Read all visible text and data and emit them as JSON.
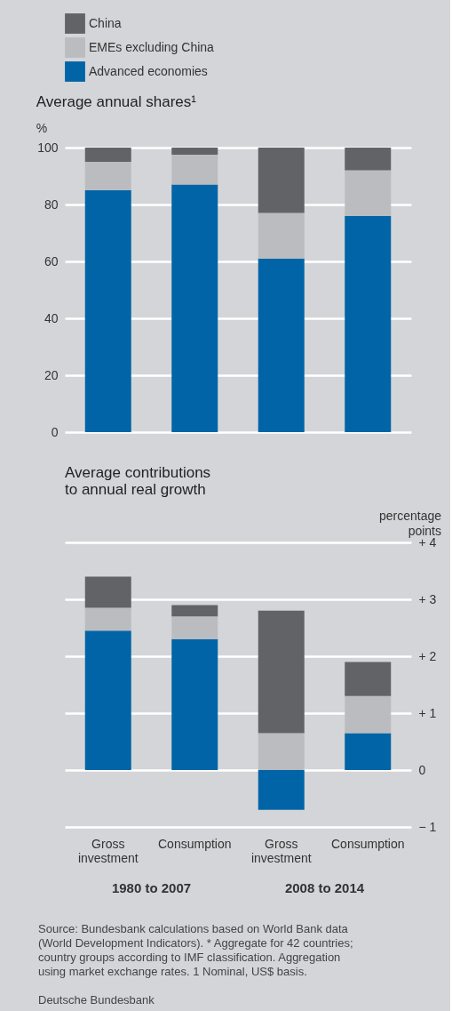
{
  "chart_data": [
    {
      "type": "bar",
      "title": "Average annual shares¹",
      "ylabel": "%",
      "stacked": true,
      "legend": "top left",
      "grid": "y",
      "tick_labels": "y",
      "categories": [
        "Gross investment",
        "Consumption",
        "Gross investment",
        "Consumption"
      ],
      "series": [
        {
          "name": "Advanced economies",
          "color": "#0064a6",
          "values": [
            85,
            87,
            61,
            76
          ]
        },
        {
          "name": "EMEs excluding China",
          "color": "#bbbcc0",
          "values": [
            10,
            10.5,
            16,
            16
          ]
        },
        {
          "name": "China",
          "color": "#626366",
          "values": [
            5,
            2.5,
            23,
            8
          ]
        }
      ],
      "ylim": [
        0,
        100
      ],
      "yticks": [
        0,
        20,
        40,
        60,
        80,
        100
      ]
    },
    {
      "type": "bar",
      "title": "Average contributions to annual real growth",
      "y2label": "percentage points",
      "stacked": true,
      "grid": "y",
      "categories": [
        "Gross investment",
        "Consumption",
        "Gross investment",
        "Consumption"
      ],
      "series": [
        {
          "color": "#0064a6",
          "axis": "y2",
          "values": [
            2.45,
            2.3,
            -0.7,
            0.65
          ]
        },
        {
          "color": "#bbbcc0",
          "axis": "y2",
          "values": [
            0.4,
            0.4,
            0.65,
            0.65
          ]
        },
        {
          "color": "#626366",
          "axis": "y2",
          "values": [
            0.55,
            0.2,
            2.15,
            0.6
          ]
        }
      ],
      "y2lim": [
        -1,
        4
      ],
      "y2ticks": [
        {
          "value": -1,
          "label": "− 1"
        },
        0,
        {
          "value": 1,
          "label": "+ 1"
        },
        {
          "value": 2,
          "label": "+ 2"
        },
        {
          "value": 3,
          "label": "+ 3"
        },
        {
          "value": 4,
          "label": "+ 4"
        }
      ],
      "annotations": [
        "1980 to 2007",
        "2008 to 2014",
        "Source: Bundesbank calculations based on World Bank data (World Development Indicators). * Aggregate for 42 countries; country groups according to IMF classification. Aggregation using market exchange rates. 1 Nominal, US$ basis.",
        "Deutsche Bundesbank"
      ]
    }
  ]
}
